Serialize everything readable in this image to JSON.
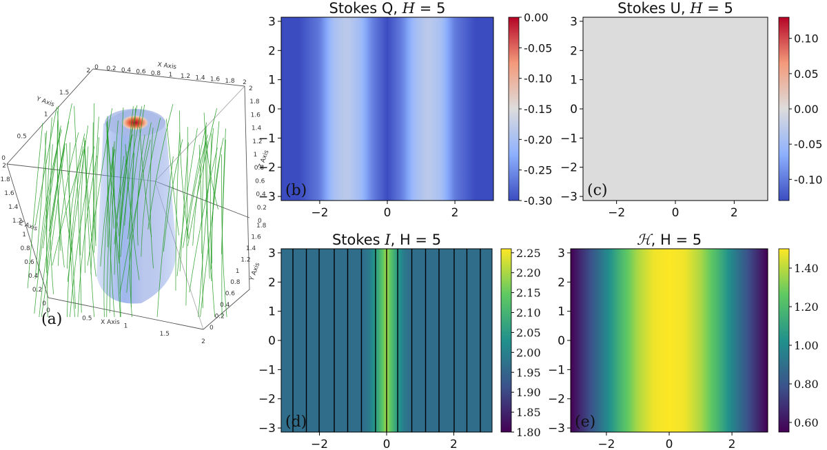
{
  "chart_data": [
    {
      "id": "a",
      "type": "volume3d",
      "panel_label": "(a)",
      "axis_names": {
        "x": "X Axis",
        "y": "Y Axis",
        "z": "Z Axis"
      },
      "x_ticks_top": [
        "0",
        "0.2",
        "0.4",
        "0.6",
        "0.8",
        "1",
        "1.2",
        "1.4",
        "1.6",
        "1.8",
        "2"
      ],
      "x_ticks_bottom": [
        "0",
        "0.5",
        "1",
        "1.5",
        "2"
      ],
      "y_ticks_left": [
        "2",
        "1.5",
        "1",
        "0.5",
        "0"
      ],
      "y_ticks_right": [
        "1.8",
        "1.6",
        "1.4",
        "1.2",
        "1",
        "0.8",
        "0.6",
        "0.4",
        "0.2",
        "0"
      ],
      "z_ticks_left": [
        "2",
        "1.8",
        "1.6",
        "1.4",
        "1.2",
        "1",
        "0.8",
        "0.6",
        "0.4",
        "0.2",
        "0"
      ],
      "z_ticks_right": [
        "2",
        "1.8",
        "1.6",
        "1.4",
        "1.2",
        "1",
        "0.8",
        "0.6",
        "0.4",
        "0.2",
        "0"
      ]
    },
    {
      "id": "b",
      "type": "heatmap",
      "title_prefix": "Stokes Q, ",
      "title_var": "H",
      "title_suffix": " = 5",
      "panel_label": "(b)",
      "colormap": "coolwarm",
      "xlim": [
        -3.14,
        3.14
      ],
      "ylim": [
        -3.14,
        3.14
      ],
      "x_ticks": [
        -2,
        0,
        2
      ],
      "x_tick_labels": [
        "−2",
        "0",
        "2"
      ],
      "y_ticks": [
        -3,
        -2,
        -1,
        0,
        1,
        2,
        3
      ],
      "y_tick_labels": [
        "−3",
        "−2",
        "−1",
        "0",
        "1",
        "2",
        "3"
      ],
      "clim": [
        -0.3,
        0.0
      ],
      "cbar_ticks": [
        0.0,
        -0.05,
        -0.1,
        -0.15,
        -0.2,
        -0.25,
        -0.3
      ],
      "cbar_tick_labels": [
        "0.00",
        "-0.05",
        "-0.10",
        "-0.15",
        "-0.20",
        "-0.25",
        "-0.30"
      ],
      "x_profile": {
        "x": [
          -3.14,
          -2.6,
          -2.0,
          -1.6,
          -1.2,
          -0.8,
          -0.45,
          0,
          0.45,
          0.8,
          1.2,
          1.6,
          2.0,
          2.6,
          3.14
        ],
        "v": [
          -0.3,
          -0.3,
          -0.265,
          -0.2,
          -0.18,
          -0.205,
          -0.26,
          -0.3,
          -0.26,
          -0.205,
          -0.18,
          -0.2,
          -0.265,
          -0.3,
          -0.3
        ]
      }
    },
    {
      "id": "c",
      "type": "heatmap",
      "title_prefix": "Stokes U, ",
      "title_var": "H",
      "title_suffix": " = 5",
      "panel_label": "(c)",
      "colormap": "coolwarm",
      "xlim": [
        -3.14,
        3.14
      ],
      "ylim": [
        -3.14,
        3.14
      ],
      "x_ticks": [
        -2,
        0,
        2
      ],
      "x_tick_labels": [
        "−2",
        "0",
        "2"
      ],
      "y_ticks": [
        -3,
        -2,
        -1,
        0,
        1,
        2,
        3
      ],
      "y_tick_labels": [
        "−3",
        "−2",
        "−1",
        "0",
        "1",
        "2",
        "3"
      ],
      "clim": [
        -0.13,
        0.13
      ],
      "cbar_ticks": [
        0.1,
        0.05,
        0.0,
        -0.05,
        -0.1
      ],
      "cbar_tick_labels": [
        "0.10",
        "0.05",
        "0.00",
        "-0.05",
        "-0.10"
      ],
      "x_profile": {
        "x": [
          -3.14,
          3.14
        ],
        "v": [
          0.0,
          0.0
        ]
      }
    },
    {
      "id": "d",
      "type": "heatmap",
      "title_prefix": "Stokes ",
      "title_var": "I",
      "title_suffix": ", H = 5",
      "panel_label": "(d)",
      "colormap": "viridis",
      "xlim": [
        -3.14,
        3.14
      ],
      "ylim": [
        -3.14,
        3.14
      ],
      "x_ticks": [
        -2,
        0,
        2
      ],
      "x_tick_labels": [
        "−2",
        "0",
        "2"
      ],
      "y_ticks": [
        -3,
        -2,
        -1,
        0,
        1,
        2,
        3
      ],
      "y_tick_labels": [
        "−3",
        "−2",
        "−1",
        "0",
        "1",
        "2",
        "3"
      ],
      "clim": [
        1.8,
        2.26
      ],
      "cbar_ticks": [
        2.25,
        2.2,
        2.15,
        2.1,
        2.05,
        2.0,
        1.95,
        1.9,
        1.85,
        1.8
      ],
      "cbar_tick_labels": [
        "2.25",
        "2.20",
        "2.15",
        "2.10",
        "2.05",
        "2.00",
        "1.95",
        "1.90",
        "1.85",
        "1.80"
      ],
      "x_profile": {
        "x": [
          -3.14,
          -0.75,
          -0.55,
          -0.35,
          -0.15,
          0,
          0.15,
          0.35,
          0.55,
          0.75,
          3.14
        ],
        "v": [
          1.965,
          1.965,
          1.98,
          2.04,
          2.12,
          2.2,
          2.12,
          2.04,
          1.98,
          1.965,
          1.965
        ]
      },
      "contour_x": [
        -2.79,
        -2.39,
        -2.01,
        -1.56,
        -1.16,
        -0.75,
        -0.33,
        0.0,
        0.33,
        0.75,
        1.16,
        1.56,
        2.01,
        2.39,
        2.79
      ]
    },
    {
      "id": "e",
      "type": "heatmap",
      "title_prefix": "",
      "title_var": "ℋ",
      "title_suffix": ", H = 5",
      "panel_label": "(e)",
      "colormap": "viridis",
      "xlim": [
        -3.14,
        3.14
      ],
      "ylim": [
        -3.14,
        3.14
      ],
      "x_ticks": [
        -2,
        0,
        2
      ],
      "x_tick_labels": [
        "−2",
        "0",
        "2"
      ],
      "y_ticks": [
        -3,
        -2,
        -1,
        0,
        1,
        2,
        3
      ],
      "y_tick_labels": [
        "−3",
        "−2",
        "−1",
        "0",
        "1",
        "2",
        "3"
      ],
      "clim": [
        0.55,
        1.5
      ],
      "cbar_ticks": [
        1.4,
        1.2,
        1.0,
        0.8,
        0.6
      ],
      "cbar_tick_labels": [
        "1.40",
        "1.20",
        "1.00",
        "0.80",
        "0.60"
      ],
      "x_profile": {
        "x": [
          -3.14,
          -2.6,
          -2.0,
          -1.5,
          -1.0,
          -0.5,
          0,
          0.5,
          1.0,
          1.5,
          2.0,
          2.6,
          3.14
        ],
        "v": [
          0.55,
          0.75,
          0.98,
          1.2,
          1.38,
          1.48,
          1.5,
          1.48,
          1.38,
          1.2,
          0.98,
          0.75,
          0.55
        ]
      }
    }
  ]
}
